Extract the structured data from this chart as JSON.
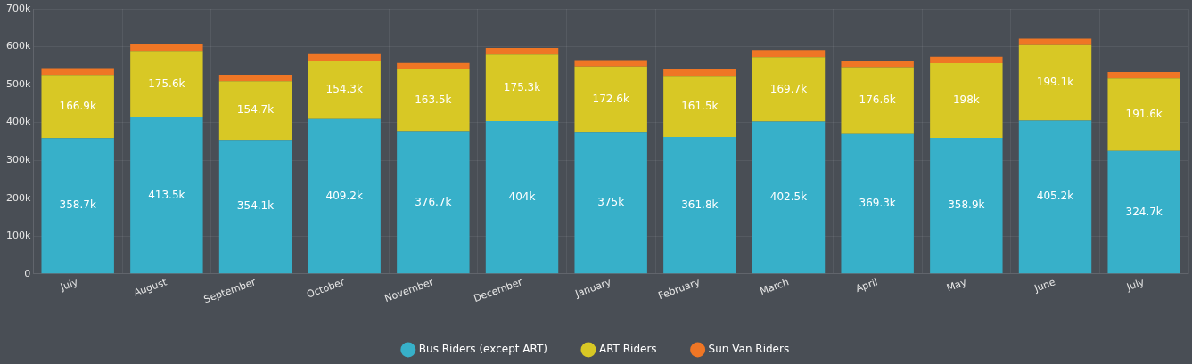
{
  "chart_data": {
    "type": "bar",
    "stacked": true,
    "categories": [
      "July",
      "August",
      "September",
      "October",
      "November",
      "December",
      "January",
      "February",
      "March",
      "April",
      "May",
      "June",
      "July"
    ],
    "series": [
      {
        "name": "Bus Riders (except ART)",
        "color": "#37b0c9",
        "values": [
          358.7,
          413.5,
          354.1,
          409.2,
          376.7,
          404,
          375,
          361.8,
          402.5,
          369.3,
          358.9,
          405.2,
          324.7
        ],
        "value_labels": [
          "358.7k",
          "413.5k",
          "354.1k",
          "409.2k",
          "376.7k",
          "404k",
          "375k",
          "361.8k",
          "402.5k",
          "369.3k",
          "358.9k",
          "405.2k",
          "324.7k"
        ]
      },
      {
        "name": "ART Riders",
        "color": "#d8c825",
        "values": [
          166.9,
          175.6,
          154.7,
          154.3,
          163.5,
          175.3,
          172.6,
          161.5,
          169.7,
          176.6,
          198,
          199.1,
          191.6
        ],
        "value_labels": [
          "166.9k",
          "175.6k",
          "154.7k",
          "154.3k",
          "163.5k",
          "175.3k",
          "172.6k",
          "161.5k",
          "169.7k",
          "176.6k",
          "198k",
          "199.1k",
          "191.6k"
        ]
      },
      {
        "name": "Sun Van Riders",
        "color": "#ef7625",
        "values": [
          18,
          19,
          17,
          17,
          17,
          17,
          17,
          17,
          19,
          17,
          17,
          17,
          17
        ]
      }
    ],
    "ylim": [
      0,
      700
    ],
    "yticks": [
      {
        "value": 0,
        "label": "0"
      },
      {
        "value": 100,
        "label": "100k"
      },
      {
        "value": 200,
        "label": "200k"
      },
      {
        "value": 300,
        "label": "300k"
      },
      {
        "value": 400,
        "label": "400k"
      },
      {
        "value": 500,
        "label": "500k"
      },
      {
        "value": 600,
        "label": "600k"
      },
      {
        "value": 700,
        "label": "700k"
      }
    ],
    "grid": true,
    "legend": "bottom"
  }
}
